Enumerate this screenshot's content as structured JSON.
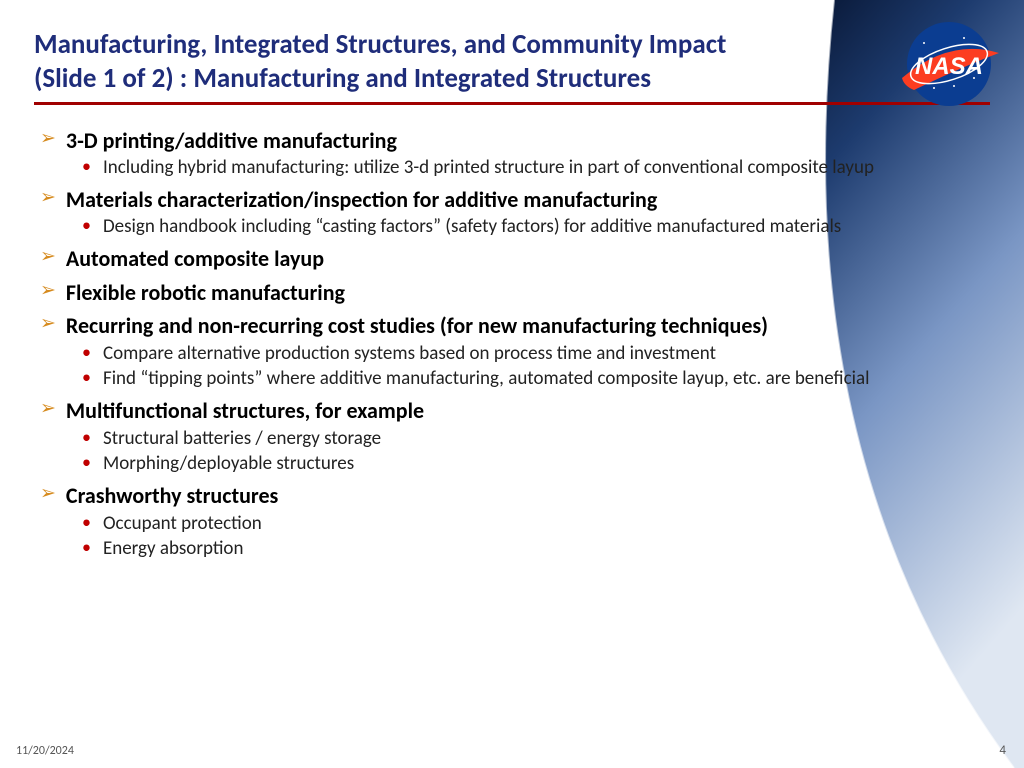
{
  "title_line1": "Manufacturing, Integrated Structures, and Community Impact",
  "title_line2": "(Slide 1 of 2) : Manufacturing and Integrated Structures",
  "footer": {
    "date": "11/20/2024",
    "page": "4"
  },
  "colors": {
    "title": "#1f2d7a",
    "rule": "#a00000",
    "l1_bullet": "#d68b1f",
    "l2_bullet": "#c00000",
    "curve_dark": "#0a1a3a",
    "curve_mid": "#3b5a8f",
    "curve_light": "#aebfd8"
  },
  "logo": {
    "text": "NASA",
    "circle_fill": "#0b3d91",
    "swoosh": "#fc3d21"
  },
  "items": [
    {
      "text": "3-D printing/additive manufacturing",
      "sub": [
        "Including hybrid manufacturing: utilize 3-d printed structure in part of conventional composite layup"
      ]
    },
    {
      "text": "Materials characterization/inspection for additive manufacturing",
      "sub": [
        "Design handbook including “casting factors” (safety factors) for additive manufactured materials"
      ]
    },
    {
      "text": "Automated composite layup",
      "sub": []
    },
    {
      "text": "Flexible robotic manufacturing",
      "sub": []
    },
    {
      "text": "Recurring and non-recurring cost studies (for new manufacturing techniques)",
      "sub": [
        "Compare alternative production systems based on process time and investment",
        "Find “tipping points” where additive manufacturing, automated composite layup, etc. are beneficial"
      ]
    },
    {
      "text": "Multifunctional structures, for example",
      "sub": [
        "Structural batteries / energy storage",
        "Morphing/deployable structures"
      ]
    },
    {
      "text": "Crashworthy structures",
      "sub": [
        "Occupant protection",
        "Energy absorption"
      ]
    }
  ]
}
